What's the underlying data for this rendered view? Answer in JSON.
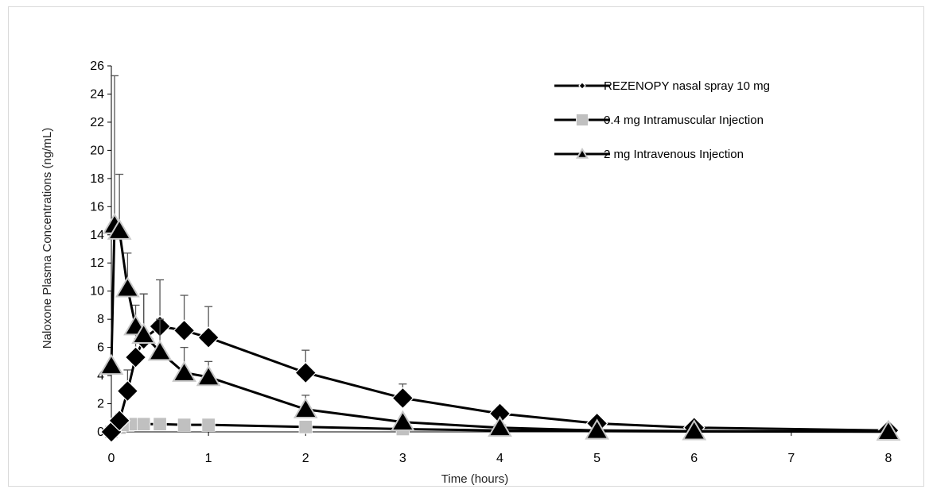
{
  "chart_data": {
    "type": "line",
    "xlabel": "Time (hours)",
    "ylabel": "Naloxone Plasma Concentrations (ng/mL)",
    "xlim": [
      0,
      8
    ],
    "ylim": [
      0,
      26
    ],
    "x_ticks": [
      "0",
      "1",
      "2",
      "3",
      "4",
      "5",
      "6",
      "7",
      "8"
    ],
    "y_ticks": [
      "0",
      "2",
      "4",
      "6",
      "8",
      "10",
      "12",
      "14",
      "16",
      "18",
      "20",
      "22",
      "24",
      "26"
    ],
    "grid": false,
    "legend_position": "top-right",
    "series": [
      {
        "name": "REZENOPY nasal spray 10 mg",
        "marker": "diamond",
        "color": "#000000",
        "x": [
          0,
          0.083,
          0.167,
          0.25,
          0.333,
          0.5,
          0.75,
          1,
          2,
          3,
          4,
          5,
          6,
          8
        ],
        "y": [
          0,
          0.8,
          2.9,
          5.3,
          6.6,
          7.5,
          7.2,
          6.7,
          4.2,
          2.4,
          1.3,
          0.6,
          0.3,
          0.1
        ],
        "error": [
          0,
          0.5,
          1.5,
          2.3,
          3.2,
          3.3,
          2.5,
          2.2,
          1.6,
          1.0,
          0.5,
          0.2,
          0.1,
          0.05
        ]
      },
      {
        "name": "0.4 mg Intramuscular Injection",
        "marker": "square",
        "color": "#c0c0c0",
        "x": [
          0,
          0.083,
          0.167,
          0.25,
          0.333,
          0.5,
          0.75,
          1,
          2,
          3,
          4,
          5,
          6,
          8
        ],
        "y": [
          0,
          0.3,
          0.5,
          0.55,
          0.55,
          0.55,
          0.5,
          0.5,
          0.35,
          0.2,
          0.1,
          0.05,
          0.03,
          0.01
        ],
        "error": [
          0,
          0.1,
          0.2,
          0.2,
          0.2,
          0.2,
          0.2,
          0.2,
          0.1,
          0.05,
          0.03,
          0.02,
          0.01,
          0.01
        ]
      },
      {
        "name": "2 mg Intravenous Injection",
        "marker": "triangle",
        "color": "#000000",
        "x": [
          0,
          0.033,
          0.083,
          0.167,
          0.25,
          0.333,
          0.5,
          0.75,
          1,
          2,
          3,
          4,
          5,
          6,
          8
        ],
        "y": [
          4.7,
          14.7,
          14.3,
          10.2,
          7.5,
          6.9,
          5.7,
          4.2,
          3.9,
          1.6,
          0.7,
          0.3,
          0.1,
          0.05,
          0.02
        ],
        "error": [
          0,
          10.6,
          4.0,
          2.5,
          1.5,
          2.9,
          2.3,
          1.8,
          1.1,
          1.0,
          0.3,
          0.1,
          0.05,
          0.02,
          0.01
        ]
      }
    ]
  }
}
